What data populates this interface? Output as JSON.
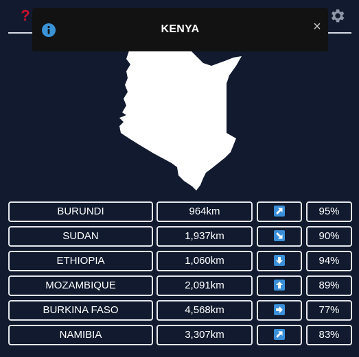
{
  "toast": {
    "title": "KENYA",
    "close_label": "×"
  },
  "header": {
    "help_label": "?"
  },
  "colors": {
    "background": "#111a2e",
    "help": "#c8102e",
    "info": "#3a93d6",
    "arrow_badge": "#3a8fd8"
  },
  "guesses": [
    {
      "country": "BURUNDI",
      "distance": "964km",
      "direction": "northeast-arrow",
      "percent": "95%"
    },
    {
      "country": "SUDAN",
      "distance": "1,937km",
      "direction": "southeast-arrow",
      "percent": "90%"
    },
    {
      "country": "ETHIOPIA",
      "distance": "1,060km",
      "direction": "south-arrow",
      "percent": "94%"
    },
    {
      "country": "MOZAMBIQUE",
      "distance": "2,091km",
      "direction": "north-arrow",
      "percent": "89%"
    },
    {
      "country": "BURKINA FASO",
      "distance": "4,568km",
      "direction": "east-arrow",
      "percent": "77%"
    },
    {
      "country": "NAMIBIA",
      "distance": "3,307km",
      "direction": "northeast-arrow",
      "percent": "83%"
    }
  ]
}
